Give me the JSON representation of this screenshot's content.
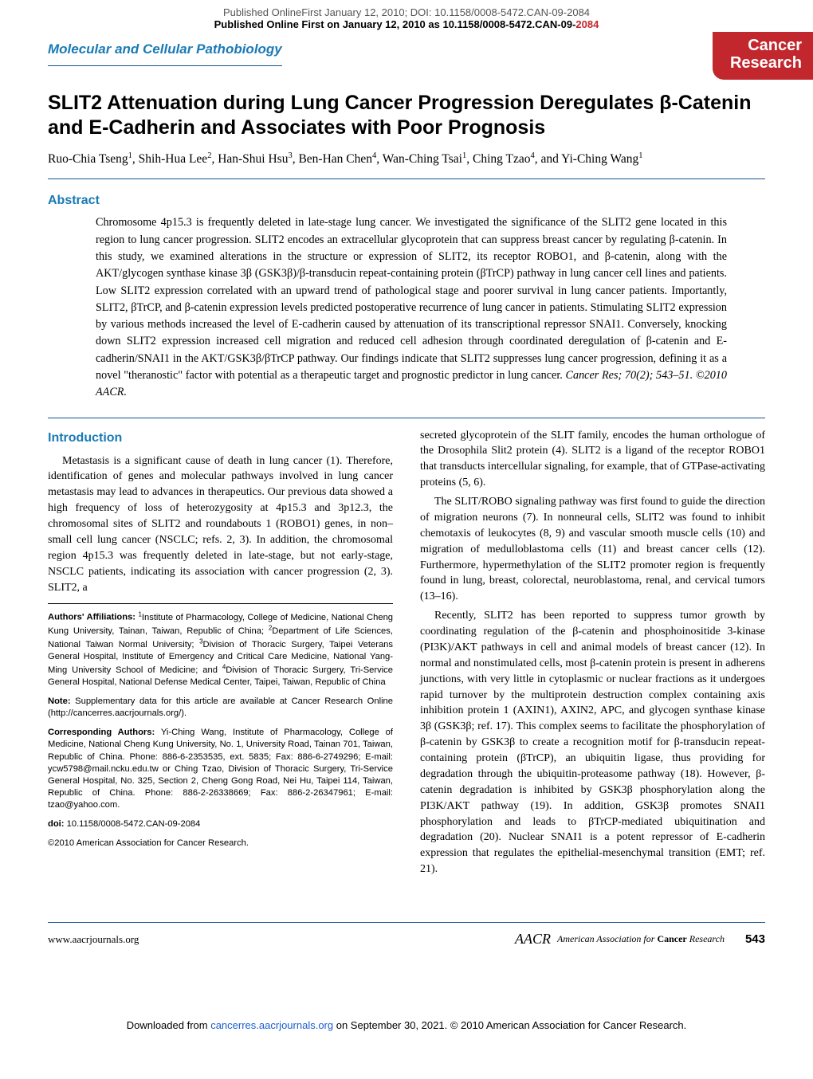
{
  "banner": {
    "line1": "Published OnlineFirst January 12, 2010; DOI: 10.1158/0008-5472.CAN-09-2084",
    "line2_a": "Published Online First on January 12, 2010 as 10.1158/0008-5472.CAN-09-",
    "line2_b": "2084"
  },
  "header": {
    "section_label": "Molecular and Cellular Pathobiology",
    "badge_line1": "Cancer",
    "badge_line2": "Research"
  },
  "title": "SLIT2 Attenuation during Lung Cancer Progression Deregulates β-Catenin and E-Cadherin and Associates with Poor Prognosis",
  "authors_html": "Ruo-Chia Tseng<sup>1</sup>, Shih-Hua Lee<sup>2</sup>, Han-Shui Hsu<sup>3</sup>, Ben-Han Chen<sup>4</sup>, Wan-Ching Tsai<sup>1</sup>, Ching Tzao<sup>4</sup>, and Yi-Ching Wang<sup>1</sup>",
  "abstract": {
    "heading": "Abstract",
    "text": "Chromosome 4p15.3 is frequently deleted in late-stage lung cancer. We investigated the significance of the SLIT2 gene located in this region to lung cancer progression. SLIT2 encodes an extracellular glycoprotein that can suppress breast cancer by regulating β-catenin. In this study, we examined alterations in the structure or expression of SLIT2, its receptor ROBO1, and β-catenin, along with the AKT/glycogen synthase kinase 3β (GSK3β)/β-transducin repeat-containing protein (βTrCP) pathway in lung cancer cell lines and patients. Low SLIT2 expression correlated with an upward trend of pathological stage and poorer survival in lung cancer patients. Importantly, SLIT2, βTrCP, and β-catenin expression levels predicted postoperative recurrence of lung cancer in patients. Stimulating SLIT2 expression by various methods increased the level of E-cadherin caused by attenuation of its transcriptional repressor SNAI1. Conversely, knocking down SLIT2 expression increased cell migration and reduced cell adhesion through coordinated deregulation of β-catenin and E-cadherin/SNAI1 in the AKT/GSK3β/βTrCP pathway. Our findings indicate that SLIT2 suppresses lung cancer progression, defining it as a novel \"theranostic\" factor with potential as a therapeutic target and prognostic predictor in lung cancer.",
    "citation": "Cancer Res; 70(2); 543–51. ©2010 AACR."
  },
  "intro": {
    "heading": "Introduction",
    "p1": "Metastasis is a significant cause of death in lung cancer (1). Therefore, identification of genes and molecular pathways involved in lung cancer metastasis may lead to advances in therapeutics. Our previous data showed a high frequency of loss of heterozygosity at 4p15.3 and 3p12.3, the chromosomal sites of SLIT2 and roundabouts 1 (ROBO1) genes, in non–small cell lung cancer (NSCLC; refs. 2, 3). In addition, the chromosomal region 4p15.3 was frequently deleted in late-stage, but not early-stage, NSCLC patients, indicating its association with cancer progression (2, 3). SLIT2, a",
    "r1": "secreted glycoprotein of the SLIT family, encodes the human orthologue of the Drosophila Slit2 protein (4). SLIT2 is a ligand of the receptor ROBO1 that transducts intercellular signaling, for example, that of GTPase-activating proteins (5, 6).",
    "r2": "The SLIT/ROBO signaling pathway was first found to guide the direction of migration neurons (7). In nonneural cells, SLIT2 was found to inhibit chemotaxis of leukocytes (8, 9) and vascular smooth muscle cells (10) and migration of medulloblastoma cells (11) and breast cancer cells (12). Furthermore, hypermethylation of the SLIT2 promoter region is frequently found in lung, breast, colorectal, neuroblastoma, renal, and cervical tumors (13–16).",
    "r3": "Recently, SLIT2 has been reported to suppress tumor growth by coordinating regulation of the β-catenin and phosphoinositide 3-kinase (PI3K)/AKT pathways in cell and animal models of breast cancer (12). In normal and nonstimulated cells, most β-catenin protein is present in adherens junctions, with very little in cytoplasmic or nuclear fractions as it undergoes rapid turnover by the multiprotein destruction complex containing axis inhibition protein 1 (AXIN1), AXIN2, APC, and glycogen synthase kinase 3β (GSK3β; ref. 17). This complex seems to facilitate the phosphorylation of β-catenin by GSK3β to create a recognition motif for β-transducin repeat-containing protein (βTrCP), an ubiquitin ligase, thus providing for degradation through the ubiquitin-proteasome pathway (18). However, β-catenin degradation is inhibited by GSK3β phosphorylation along the PI3K/AKT pathway (19). In addition, GSK3β promotes SNAI1 phosphorylation and leads to βTrCP-mediated ubiquitination and degradation (20). Nuclear SNAI1 is a potent repressor of E-cadherin expression that regulates the epithelial-mesenchymal transition (EMT; ref. 21)."
  },
  "affil": {
    "authors_label": "Authors' Affiliations:",
    "authors_text": " <sup>1</sup>Institute of Pharmacology, College of Medicine, National Cheng Kung University, Tainan, Taiwan, Republic of China; <sup>2</sup>Department of Life Sciences, National Taiwan Normal University; <sup>3</sup>Division of Thoracic Surgery, Taipei Veterans General Hospital, Institute of Emergency and Critical Care Medicine, National Yang-Ming University School of Medicine; and <sup>4</sup>Division of Thoracic Surgery, Tri-Service General Hospital, National Defense Medical Center, Taipei, Taiwan, Republic of China",
    "note_label": "Note:",
    "note_text": " Supplementary data for this article are available at Cancer Research Online (http://cancerres.aacrjournals.org/).",
    "corr_label": "Corresponding Authors:",
    "corr_text": " Yi-Ching Wang, Institute of Pharmacology, College of Medicine, National Cheng Kung University, No. 1, University Road, Tainan 701, Taiwan, Republic of China. Phone: 886-6-2353535, ext. 5835; Fax: 886-6-2749296; E-mail: ycw5798@mail.ncku.edu.tw or Ching Tzao, Division of Thoracic Surgery, Tri-Service General Hospital, No. 325, Section 2, Cheng Gong Road, Nei Hu, Taipei 114, Taiwan, Republic of China. Phone: 886-2-26338669; Fax: 886-2-26347961; E-mail: tzao@yahoo.com.",
    "doi_label": "doi:",
    "doi_text": " 10.1158/0008-5472.CAN-09-2084",
    "copyright": "©2010 American Association for Cancer Research."
  },
  "footer": {
    "left": "www.aacrjournals.org",
    "aacr_text_a": "American Association for ",
    "aacr_text_b": "Cancer",
    "aacr_text_c": " Research",
    "page": "543"
  },
  "download": {
    "pre": "Downloaded from ",
    "link": "cancerres.aacrjournals.org",
    "post": " on September 30, 2021. © 2010 American Association for Cancer Research."
  },
  "colors": {
    "blue": "#1a5490",
    "lightblue": "#1a7ab5",
    "red": "#c1272d"
  }
}
